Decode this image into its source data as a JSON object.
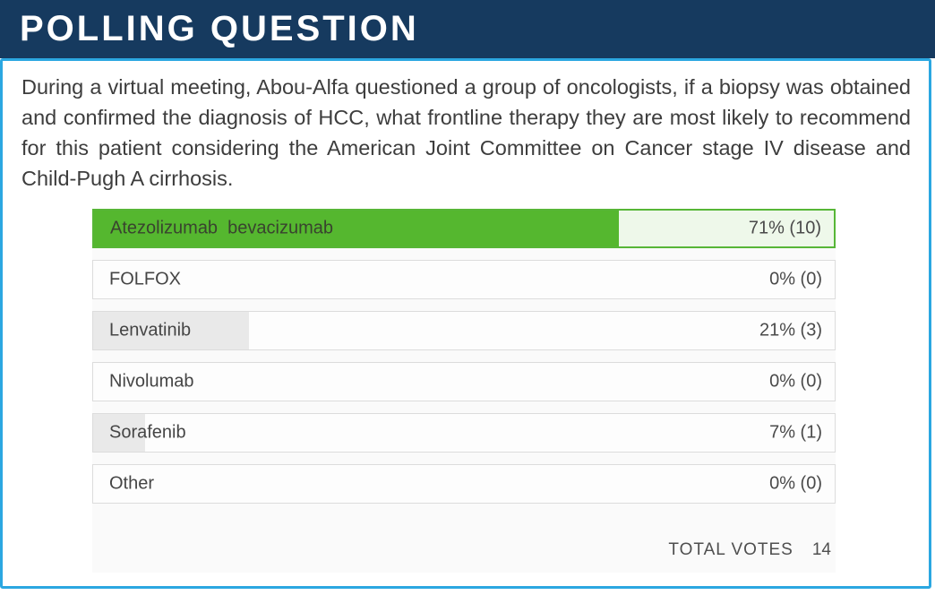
{
  "header": {
    "title": "POLLING QUESTION"
  },
  "question": "During a virtual meeting, Abou-Alfa questioned a group of oncologists, if a biopsy was obtained and confirmed the diagnosis of HCC, what frontline therapy they are most likely to recommend for this patient considering the American Joint Committee on Cancer stage IV disease and Child-Pugh A cirrhosis.",
  "poll": {
    "options": [
      {
        "label": "Atezolizumab  bevacizumab",
        "percent": 71,
        "votes": 10,
        "result_display": "71% (10)",
        "winner": true
      },
      {
        "label": "FOLFOX",
        "percent": 0,
        "votes": 0,
        "result_display": "0% (0)",
        "winner": false
      },
      {
        "label": "Lenvatinib",
        "percent": 21,
        "votes": 3,
        "result_display": "21% (3)",
        "winner": false
      },
      {
        "label": "Nivolumab",
        "percent": 0,
        "votes": 0,
        "result_display": "0% (0)",
        "winner": false
      },
      {
        "label": "Sorafenib",
        "percent": 7,
        "votes": 1,
        "result_display": "7% (1)",
        "winner": false
      },
      {
        "label": "Other",
        "percent": 0,
        "votes": 0,
        "result_display": "0% (0)",
        "winner": false
      }
    ],
    "total_votes_label": "TOTAL VOTES",
    "total_votes_count": "14"
  },
  "colors": {
    "header_bg": "#163a5f",
    "panel_border": "#2ba7e1",
    "winner_fill": "#55b72f",
    "winner_bg": "#eef8ea",
    "winner_border": "#57b637",
    "bar_fill_gray": "#e9e9e9",
    "row_border": "#dcdcdc"
  },
  "chart_data": {
    "type": "bar",
    "title": "POLLING QUESTION",
    "categories": [
      "Atezolizumab  bevacizumab",
      "FOLFOX",
      "Lenvatinib",
      "Nivolumab",
      "Sorafenib",
      "Other"
    ],
    "series": [
      {
        "name": "percent",
        "values": [
          71,
          0,
          21,
          0,
          7,
          0
        ]
      },
      {
        "name": "votes",
        "values": [
          10,
          0,
          3,
          0,
          1,
          0
        ]
      }
    ],
    "xlabel": "",
    "ylabel": "",
    "xlim": [
      0,
      100
    ],
    "total_votes": 14,
    "legend_position": "none",
    "grid": false
  }
}
